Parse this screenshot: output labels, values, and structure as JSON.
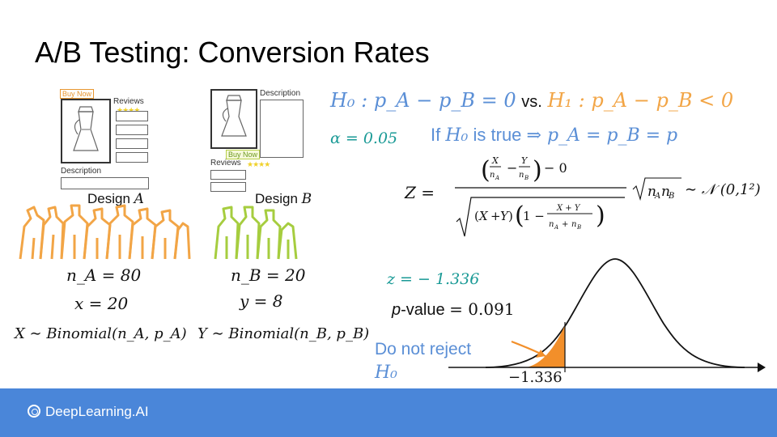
{
  "title": "A/B Testing: Conversion Rates",
  "design_a": {
    "buy_now": "Buy Now",
    "reviews": "Reviews",
    "stars": "★★★★",
    "description": "Description",
    "label": "Design",
    "label_var": "A",
    "n_label": "n_A = 80",
    "x_label": "x = 20",
    "dist_label": "X ∼ Binomial(n_A, p_A)"
  },
  "design_b": {
    "buy_now": "Buy Now",
    "reviews": "Reviews",
    "stars": "★★★★",
    "description": "Description",
    "label": "Design",
    "label_var": "B",
    "n_label": "n_B = 20",
    "y_label": "y = 8",
    "dist_label": "Y ∼ Binomial(n_B, p_B)"
  },
  "hypotheses": {
    "h0": "H₀ : p_A − p_B = 0",
    "vs": "vs.",
    "h1": "H₁ : p_A − p_B < 0"
  },
  "alpha": "α = 0.05",
  "if_h0": {
    "prefix": "If",
    "h0": "H₀",
    "middle": "is true",
    "implies": "⇒ p_A = p_B = p"
  },
  "z_formula": {
    "lhs": "Z =",
    "rhs": "∼ 𝒩 (0,1²)"
  },
  "z_value": "z = − 1.336",
  "p_value": {
    "prefix": "p",
    "suffix": "-value",
    "value": "= 0.091"
  },
  "decision": {
    "line1": "Do not reject",
    "line2": "H₀"
  },
  "critical_tick": "−1.336",
  "footer": {
    "brand": "DeepLearning.AI"
  },
  "colors": {
    "blue": "#5b8fd6",
    "orange": "#f2a546",
    "teal": "#1a9a96",
    "footer": "#4a86d9",
    "crowd_a": "#f2a546",
    "crowd_b": "#a6cd3f"
  }
}
